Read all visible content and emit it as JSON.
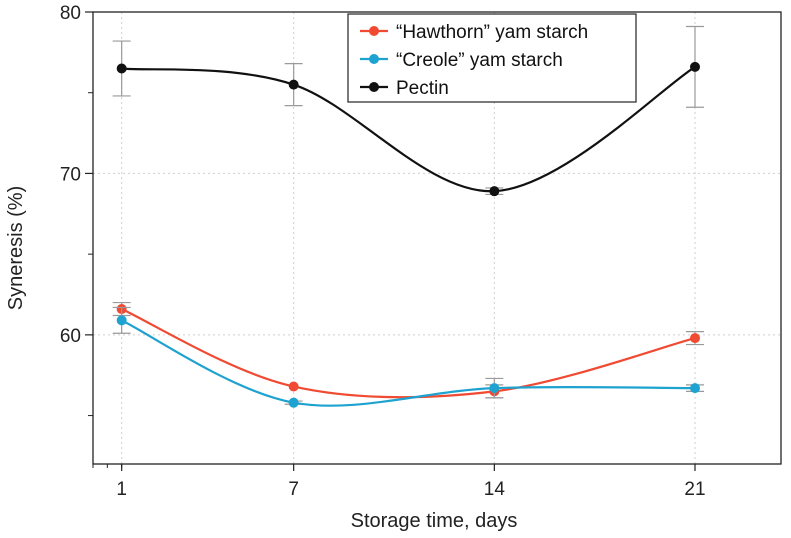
{
  "chart_data": {
    "type": "line",
    "xlabel": "Storage time, days",
    "ylabel": "Syneresis (%)",
    "x": [
      1,
      7,
      14,
      21
    ],
    "x_ticks": [
      "1",
      "7",
      "14",
      "21"
    ],
    "y_ticks": [
      "60",
      "70",
      "80"
    ],
    "xlim": [
      0,
      24
    ],
    "ylim": [
      52,
      80
    ],
    "grid": true,
    "legend_position": "top-right",
    "series": [
      {
        "name": "“Hawthorn” yam starch",
        "color": "#f04a32",
        "values": [
          61.6,
          56.8,
          56.5,
          59.8
        ],
        "error": [
          0.4,
          0.0,
          0.4,
          0.4
        ]
      },
      {
        "name": "“Creole” yam starch",
        "color": "#1ea2cf",
        "values": [
          60.9,
          55.8,
          56.7,
          56.7
        ],
        "error": [
          0.8,
          0.1,
          0.6,
          0.2
        ]
      },
      {
        "name": "Pectin",
        "color": "#111111",
        "values": [
          76.5,
          75.5,
          68.9,
          76.6
        ],
        "error": [
          1.7,
          1.3,
          0.2,
          2.5
        ]
      }
    ]
  }
}
